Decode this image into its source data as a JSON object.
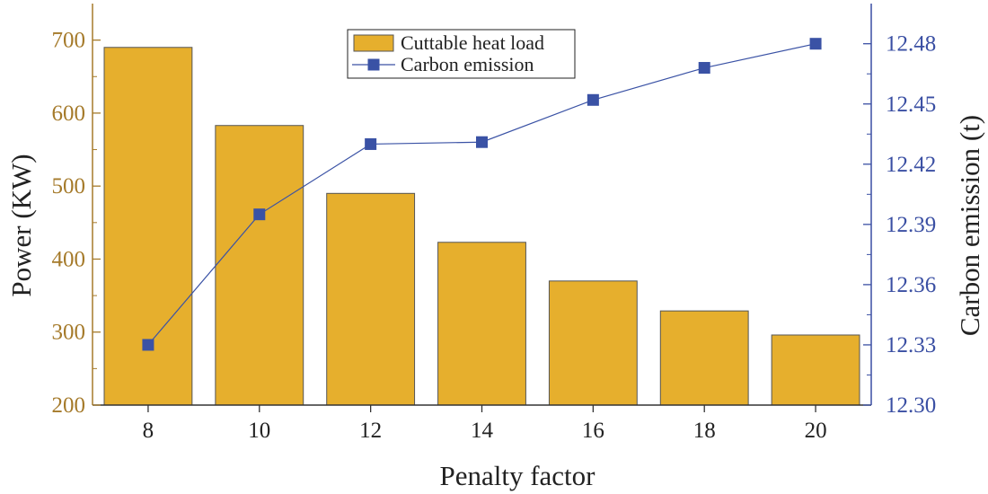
{
  "chart_data": {
    "type": "bar",
    "xlabel": "Penalty factor",
    "categories": [
      "8",
      "10",
      "12",
      "14",
      "16",
      "18",
      "20"
    ],
    "y_left": {
      "label": "Power (KW)",
      "ylim": [
        200,
        750
      ],
      "ticks": [
        "200",
        "300",
        "400",
        "500",
        "600",
        "700"
      ]
    },
    "y_right": {
      "label": "Carbon emission  (t)",
      "ylim": [
        12.3,
        12.5
      ],
      "ticks": [
        "12.30",
        "12.33",
        "12.36",
        "12.39",
        "12.42",
        "12.45",
        "12.48"
      ]
    },
    "series": [
      {
        "name": "Cuttable heat load",
        "type": "bar",
        "axis": "left",
        "values": [
          690,
          583,
          490,
          423,
          370,
          329,
          296
        ]
      },
      {
        "name": "Carbon emission",
        "type": "line",
        "axis": "right",
        "values": [
          12.33,
          12.395,
          12.43,
          12.431,
          12.452,
          12.468,
          12.48
        ]
      }
    ],
    "legend_position": "top-center",
    "grid": false,
    "colors": {
      "bar_fill": "#E6AF2D",
      "bar_edge": "#555555",
      "line": "#3A52A5",
      "left_axis": "#A57A2A",
      "right_axis": "#3A4FA3"
    }
  }
}
